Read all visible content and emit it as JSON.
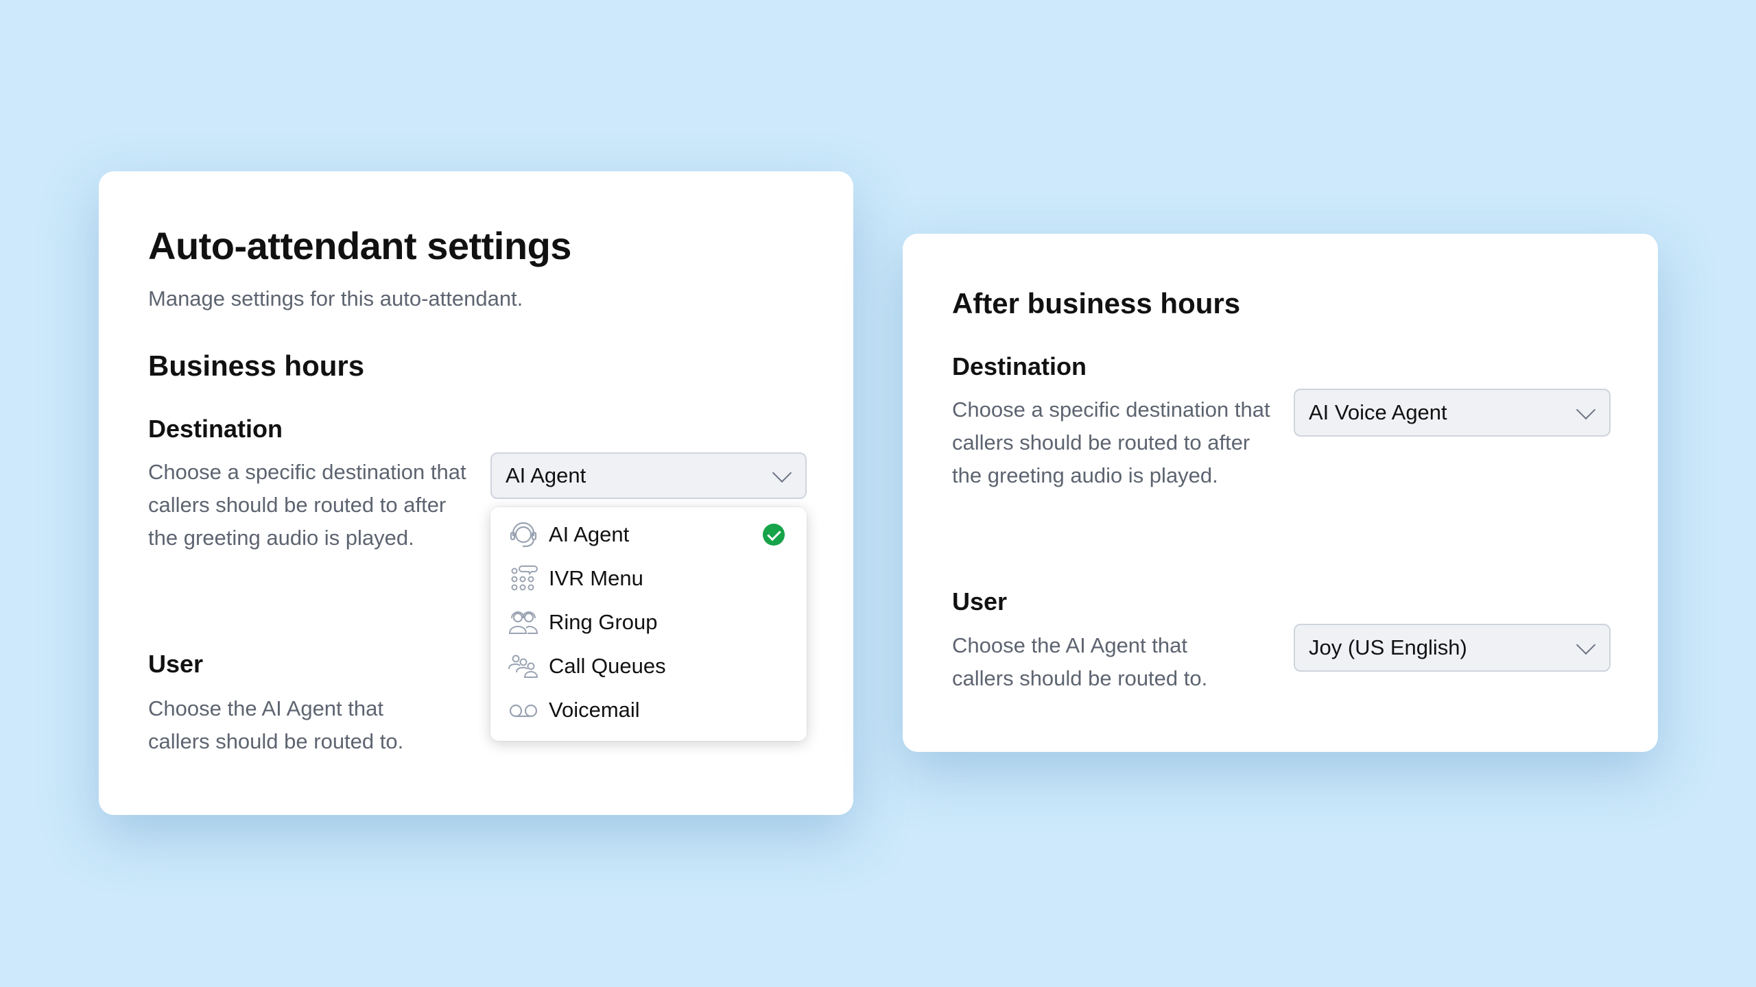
{
  "business_card": {
    "title": "Auto-attendant settings",
    "subtitle": "Manage settings for this auto-attendant.",
    "section": "Business hours",
    "destination": {
      "label": "Destination",
      "description": "Choose a specific destination that callers should be routed to after the greeting audio is played.",
      "selected": "AI Agent",
      "options": [
        {
          "label": "AI Agent",
          "icon": "headset-icon",
          "selected": true
        },
        {
          "label": "IVR Menu",
          "icon": "keypad-icon",
          "selected": false
        },
        {
          "label": "Ring Group",
          "icon": "group-headset-icon",
          "selected": false
        },
        {
          "label": "Call Queues",
          "icon": "users-icon",
          "selected": false
        },
        {
          "label": "Voicemail",
          "icon": "voicemail-icon",
          "selected": false
        }
      ]
    },
    "user": {
      "label": "User",
      "description": "Choose the AI Agent that callers should be routed to."
    }
  },
  "after_hours_card": {
    "title": "After business hours",
    "destination": {
      "label": "Destination",
      "description": "Choose a specific destination that callers should be routed to after the greeting audio is played.",
      "selected": "AI Voice Agent"
    },
    "user": {
      "label": "User",
      "description": "Choose the AI Agent that callers should be routed to.",
      "selected": "Joy (US English)"
    }
  },
  "colors": {
    "background": "#cde9fb",
    "check": "#16a34a",
    "icon": "#9aa3b2"
  }
}
